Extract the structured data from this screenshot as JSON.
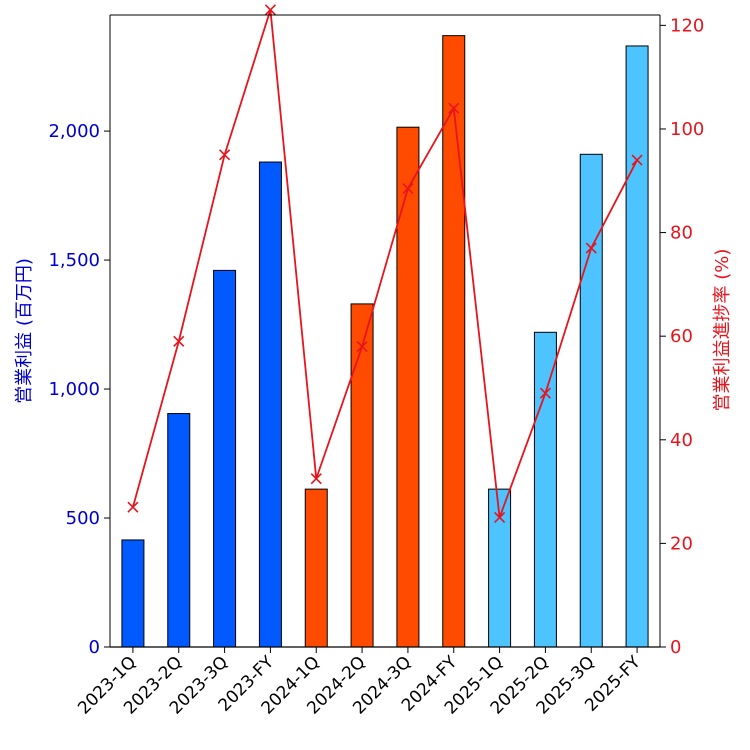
{
  "chart_data": {
    "type": "bar",
    "categories": [
      "2023-1Q",
      "2023-2Q",
      "2023-3Q",
      "2023-FY",
      "2024-1Q",
      "2024-2Q",
      "2024-3Q",
      "2024-FY",
      "2025-1Q",
      "2025-2Q",
      "2025-3Q",
      "2025-FY"
    ],
    "series": [
      {
        "name": "営業利益",
        "axis": "left",
        "type": "bar",
        "values": [
          415,
          905,
          1460,
          1880,
          612,
          1330,
          2015,
          2370,
          612,
          1220,
          1910,
          2330
        ]
      },
      {
        "name": "営業利益進捗率",
        "axis": "right",
        "type": "line",
        "marker": "x",
        "values": [
          27,
          59,
          95,
          123,
          32.5,
          58,
          88.5,
          104,
          25,
          49,
          77,
          94
        ]
      }
    ],
    "bar_colors": [
      "#005AFF",
      "#005AFF",
      "#005AFF",
      "#005AFF",
      "#FF4B00",
      "#FF4B00",
      "#FF4B00",
      "#FF4B00",
      "#4DC4FF",
      "#4DC4FF",
      "#4DC4FF",
      "#4DC4FF"
    ],
    "line_color": "#E8141C",
    "left_axis_color": "#0000CC",
    "right_axis_color": "#E8141C",
    "ylabel": "営業利益 (百万円)",
    "y2label": "営業利益進捗率 (%)",
    "xlabel": "",
    "ylim": [
      0,
      2450
    ],
    "y2lim": [
      0,
      122
    ],
    "yticks": [
      0,
      500,
      1000,
      1500,
      2000
    ],
    "ytick_labels": [
      "0",
      "500",
      "1,000",
      "1,500",
      "2,000"
    ],
    "y2ticks": [
      0,
      20,
      40,
      60,
      80,
      100,
      120
    ],
    "y2tick_labels": [
      "0",
      "20",
      "40",
      "60",
      "80",
      "100",
      "120"
    ],
    "legend": "none",
    "grid": false
  }
}
